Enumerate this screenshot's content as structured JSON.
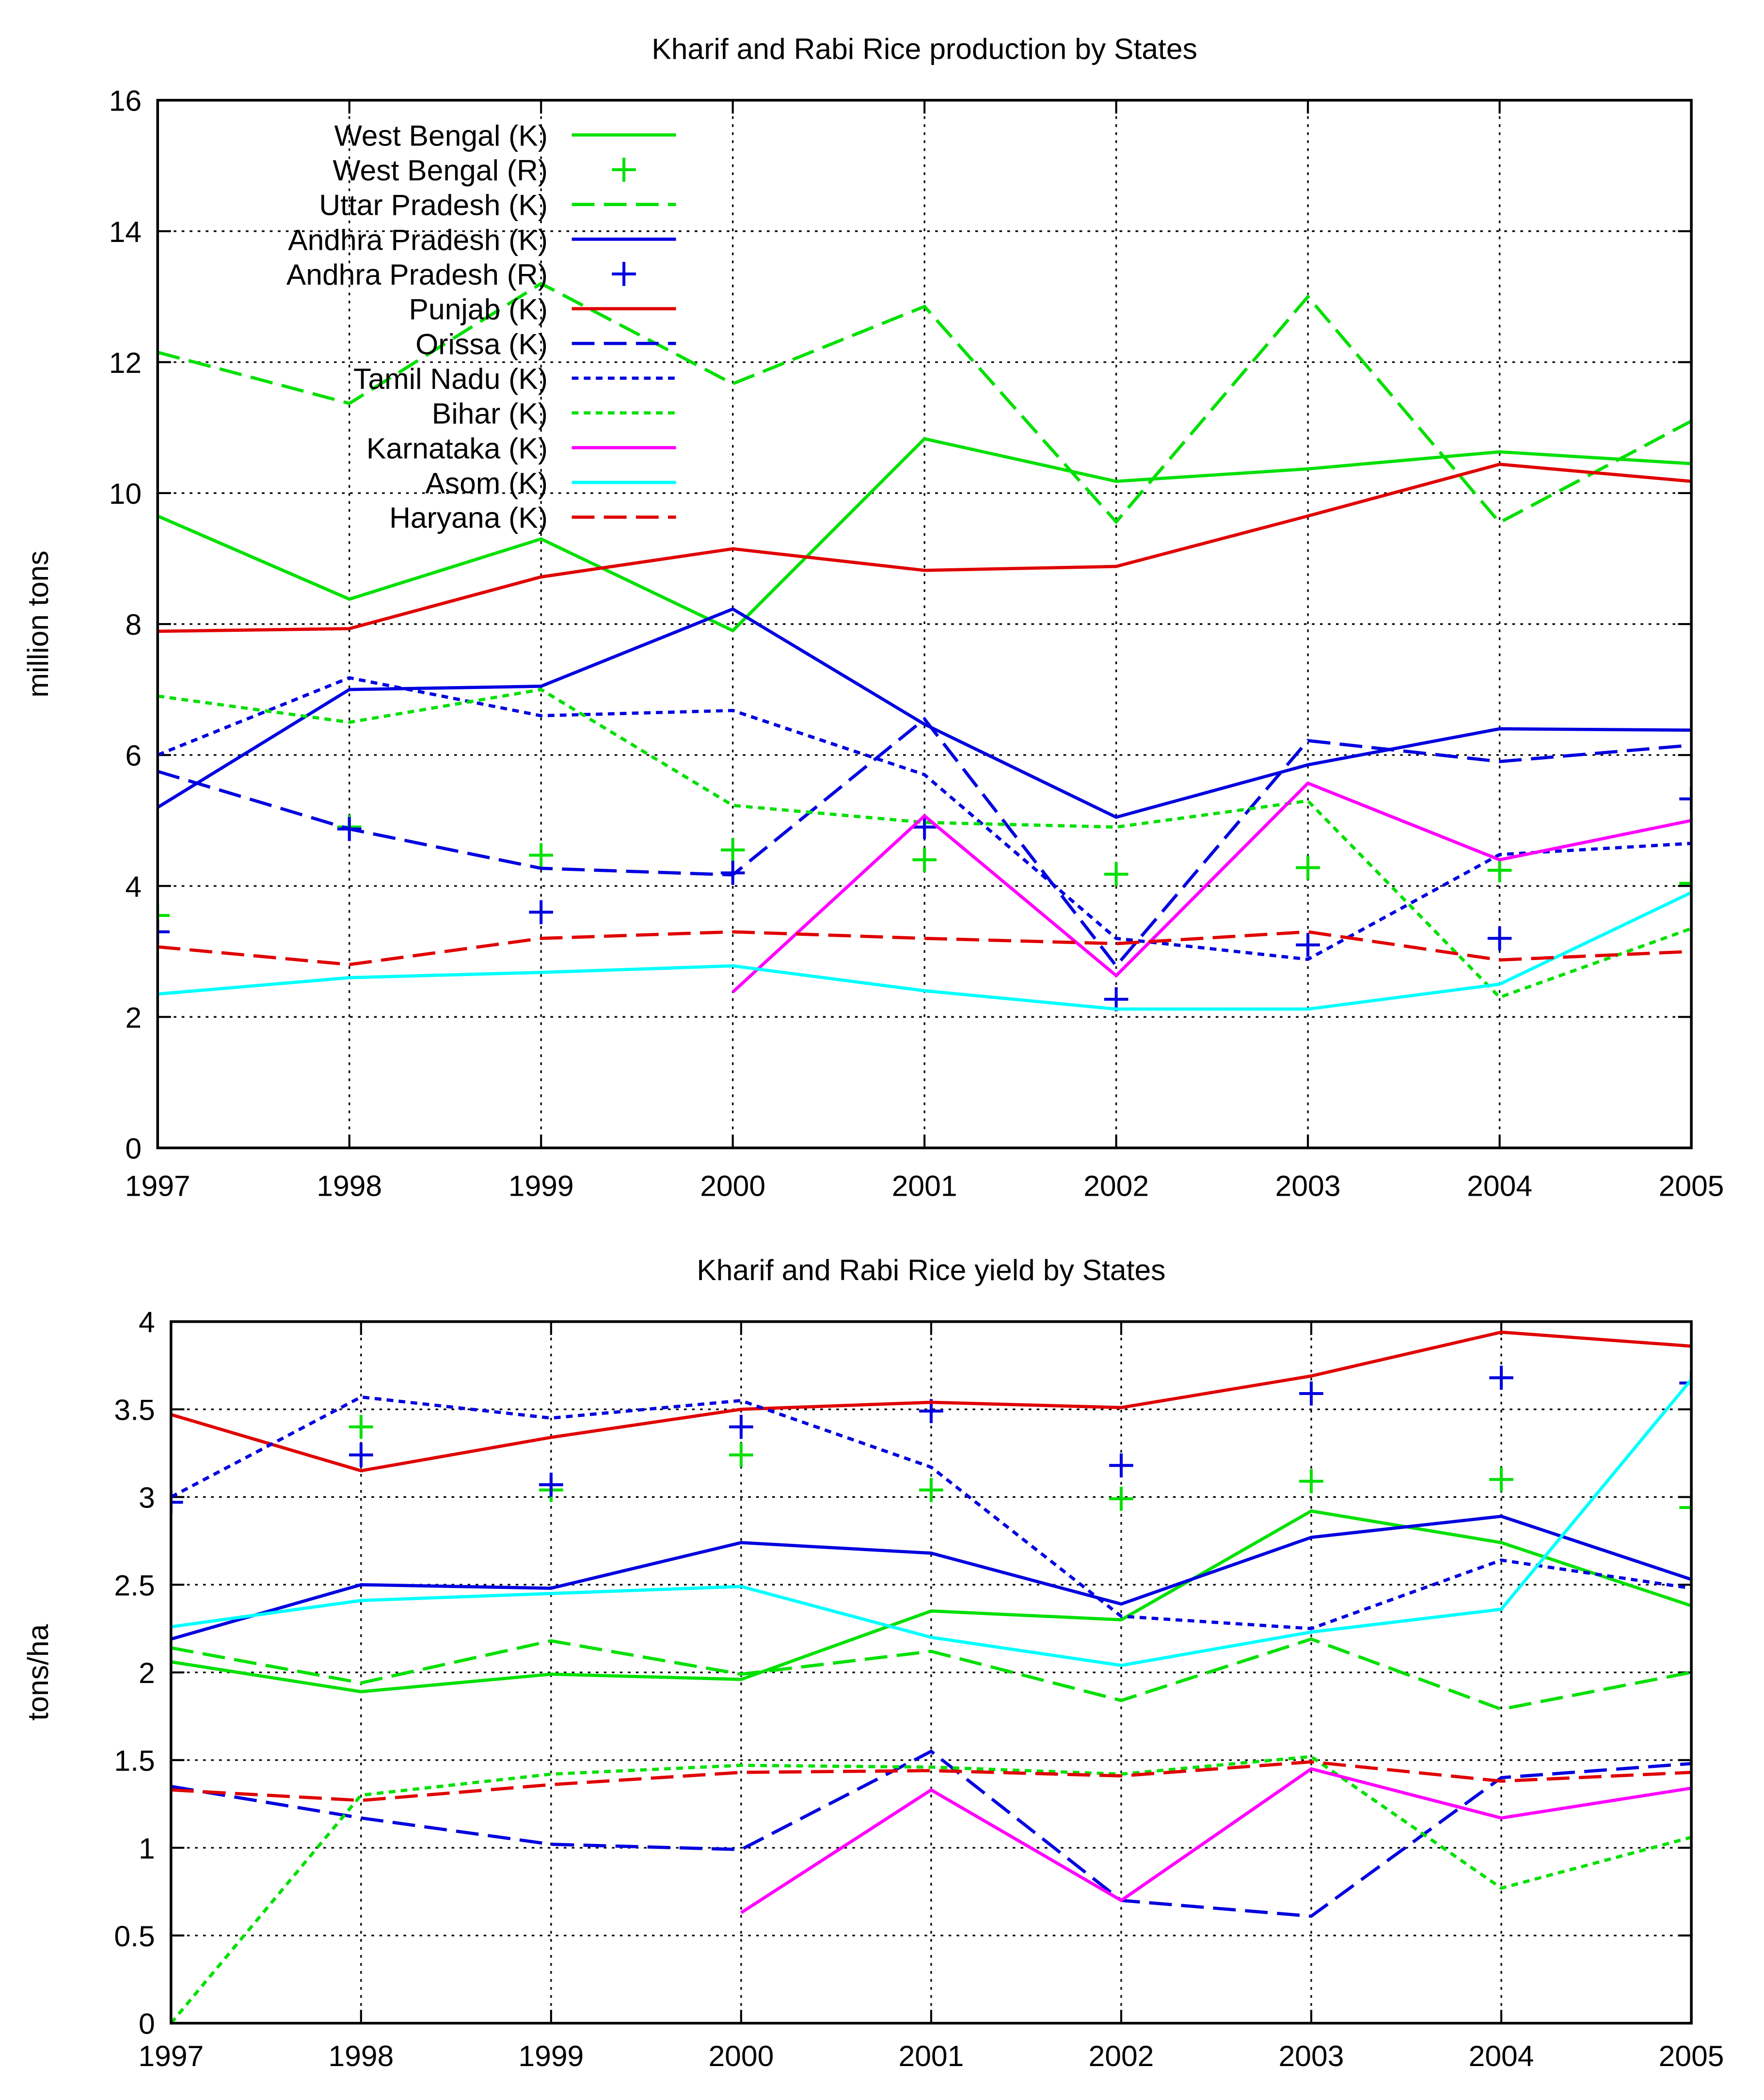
{
  "chart_data": [
    {
      "type": "line",
      "title": "Kharif and Rabi Rice production by States",
      "ylabel": "million tons",
      "xlabel": "",
      "x": [
        1997,
        1998,
        1999,
        2000,
        2001,
        2002,
        2003,
        2004,
        2005
      ],
      "xlim": [
        1997,
        2005
      ],
      "ylim": [
        0,
        16
      ],
      "yticks": [
        0,
        2,
        4,
        6,
        8,
        10,
        12,
        14,
        16
      ],
      "grid": true,
      "legend": "top-left",
      "series": [
        {
          "name": "West Bengal (K)",
          "style": "solid",
          "color": "#00e000",
          "values": [
            9.65,
            8.38,
            9.3,
            7.9,
            10.83,
            10.18,
            10.37,
            10.63,
            10.45
          ]
        },
        {
          "name": "West Bengal (R)",
          "style": "points",
          "color": "#00e000",
          "values": [
            3.55,
            4.9,
            4.47,
            4.55,
            4.4,
            4.18,
            4.28,
            4.24,
            4.04
          ]
        },
        {
          "name": "Uttar Pradesh (K)",
          "style": "dashed",
          "color": "#00e000",
          "values": [
            12.15,
            11.37,
            13.2,
            11.67,
            12.85,
            9.56,
            13.0,
            9.55,
            11.1
          ]
        },
        {
          "name": "Andhra Pradesh (K)",
          "style": "solid",
          "color": "#0000e0",
          "values": [
            5.2,
            7.0,
            7.05,
            8.23,
            6.47,
            5.05,
            5.85,
            6.4,
            6.38
          ]
        },
        {
          "name": "Andhra Pradesh (R)",
          "style": "points",
          "color": "#0000e0",
          "values": [
            3.3,
            4.87,
            3.6,
            4.2,
            4.9,
            2.27,
            3.1,
            3.2,
            5.33
          ]
        },
        {
          "name": "Punjab (K)",
          "style": "solid",
          "color": "#e00000",
          "values": [
            7.89,
            7.93,
            8.72,
            9.15,
            8.82,
            8.88,
            9.65,
            10.44,
            10.18
          ]
        },
        {
          "name": "Orissa (K)",
          "style": "dashed",
          "color": "#0000e0",
          "values": [
            5.75,
            4.87,
            4.27,
            4.17,
            6.55,
            2.78,
            6.22,
            5.9,
            6.15
          ]
        },
        {
          "name": "Tamil Nadu (K)",
          "style": "dotted",
          "color": "#0000e0",
          "values": [
            6.0,
            7.18,
            6.6,
            6.68,
            5.7,
            3.2,
            2.88,
            4.48,
            4.65
          ]
        },
        {
          "name": "Bihar (K)",
          "style": "dotted",
          "color": "#00e000",
          "values": [
            6.9,
            6.5,
            7.0,
            5.23,
            4.97,
            4.9,
            5.3,
            2.3,
            3.35
          ]
        },
        {
          "name": "Karnataka (K)",
          "style": "solid",
          "color": "#ff00ff",
          "values": [
            null,
            null,
            null,
            2.38,
            5.07,
            2.63,
            5.57,
            4.4,
            5.0
          ]
        },
        {
          "name": "Asom (K)",
          "style": "solid",
          "color": "#00ffff",
          "values": [
            2.35,
            2.6,
            2.68,
            2.78,
            2.4,
            2.12,
            2.12,
            2.5,
            3.9
          ]
        },
        {
          "name": "Haryana (K)",
          "style": "dashed",
          "color": "#e00000",
          "values": [
            3.07,
            2.8,
            3.2,
            3.3,
            3.2,
            3.12,
            3.3,
            2.87,
            3.0
          ]
        }
      ]
    },
    {
      "type": "line",
      "title": "Kharif and Rabi Rice yield by States",
      "ylabel": "tons/ha",
      "xlabel": "",
      "x": [
        1997,
        1998,
        1999,
        2000,
        2001,
        2002,
        2003,
        2004,
        2005
      ],
      "xlim": [
        1997,
        2005
      ],
      "ylim": [
        0,
        4
      ],
      "yticks": [
        0,
        0.5,
        1,
        1.5,
        2,
        2.5,
        3,
        3.5,
        4
      ],
      "grid": true,
      "legend": "none",
      "series": [
        {
          "style": "solid",
          "color": "#00e000",
          "values": [
            2.06,
            1.89,
            1.99,
            1.96,
            2.35,
            2.3,
            2.92,
            2.74,
            2.38
          ]
        },
        {
          "style": "points",
          "color": "#00e000",
          "values": [
            null,
            3.4,
            3.04,
            3.24,
            3.04,
            2.99,
            3.09,
            3.1,
            2.94
          ]
        },
        {
          "style": "dashed",
          "color": "#00e000",
          "values": [
            2.14,
            1.94,
            2.18,
            1.99,
            2.12,
            1.84,
            2.19,
            1.79,
            2.0
          ]
        },
        {
          "style": "solid",
          "color": "#0000e0",
          "values": [
            2.19,
            2.5,
            2.48,
            2.74,
            2.68,
            2.39,
            2.77,
            2.89,
            2.53
          ]
        },
        {
          "style": "points",
          "color": "#0000e0",
          "values": [
            2.97,
            3.24,
            3.07,
            3.4,
            3.49,
            3.18,
            3.59,
            3.68,
            3.65
          ]
        },
        {
          "style": "solid",
          "color": "#e00000",
          "values": [
            3.47,
            3.15,
            3.34,
            3.5,
            3.54,
            3.51,
            3.69,
            3.94,
            3.86
          ]
        },
        {
          "style": "dashed",
          "color": "#0000e0",
          "values": [
            1.35,
            1.17,
            1.02,
            0.99,
            1.55,
            0.7,
            0.61,
            1.4,
            1.48
          ]
        },
        {
          "style": "dotted",
          "color": "#0000e0",
          "values": [
            3.0,
            3.57,
            3.45,
            3.55,
            3.17,
            2.32,
            2.25,
            2.64,
            2.48
          ]
        },
        {
          "style": "dotted",
          "color": "#00e000",
          "values": [
            0.0,
            1.3,
            1.42,
            1.47,
            1.46,
            1.42,
            1.52,
            0.77,
            1.06
          ]
        },
        {
          "style": "solid",
          "color": "#ff00ff",
          "values": [
            null,
            null,
            null,
            0.63,
            1.33,
            0.7,
            1.45,
            1.17,
            1.34
          ]
        },
        {
          "style": "solid",
          "color": "#00ffff",
          "values": [
            2.26,
            2.41,
            2.45,
            2.49,
            2.2,
            2.04,
            2.23,
            2.36,
            3.67
          ]
        },
        {
          "style": "dashed",
          "color": "#e00000",
          "values": [
            1.33,
            1.27,
            1.36,
            1.43,
            1.44,
            1.41,
            1.49,
            1.38,
            1.43
          ]
        }
      ]
    }
  ]
}
